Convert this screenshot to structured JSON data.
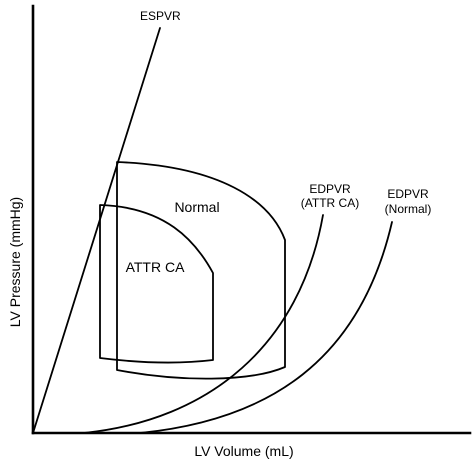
{
  "labels": {
    "espvr": "ESPVR",
    "edpvr_attr_line1": "EDPVR",
    "edpvr_attr_line2": "(ATTR CA)",
    "edpvr_normal_line1": "EDPVR",
    "edpvr_normal_line2": "(Normal)",
    "loop_normal": "Normal",
    "loop_attr": "ATTR CA"
  },
  "axes": {
    "x_title": "LV Volume (mL)",
    "y_title": "LV Pressure (mmHg)"
  },
  "colors": {
    "line": "#000000",
    "background": "#ffffff"
  }
}
